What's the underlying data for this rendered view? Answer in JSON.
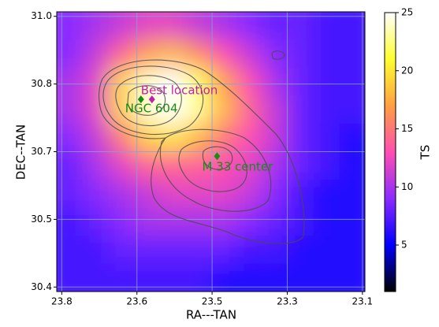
{
  "chart_data": {
    "type": "heatmap",
    "xlabel": "RA---TAN",
    "ylabel": "DEC--TAN",
    "colorbar_label": "TS",
    "xlim": [
      23.76,
      23.145
    ],
    "ylim": [
      30.39,
      31.01
    ],
    "xticks": [
      {
        "value": 23.75,
        "label": "23.8"
      },
      {
        "value": 23.6,
        "label": "23.6"
      },
      {
        "value": 23.45,
        "label": "23.5"
      },
      {
        "value": 23.3,
        "label": "23.3"
      },
      {
        "value": 23.15,
        "label": "23.1"
      }
    ],
    "yticks": [
      {
        "value": 31.0,
        "label": "31.0"
      },
      {
        "value": 30.85,
        "label": "30.8"
      },
      {
        "value": 30.7,
        "label": "30.7"
      },
      {
        "value": 30.55,
        "label": "30.5"
      },
      {
        "value": 30.4,
        "label": "30.4"
      }
    ],
    "grid": true,
    "clim": [
      1,
      25
    ],
    "cticks": [
      5,
      10,
      15,
      20,
      25
    ],
    "colormap": [
      "#000000",
      "#0000ff",
      "#8a2bff",
      "#ff4fb0",
      "#ffa040",
      "#ffff30",
      "#ffffff"
    ],
    "z": [
      [
        9,
        10,
        11,
        12,
        12,
        11,
        10,
        9,
        8,
        8,
        7,
        7
      ],
      [
        9,
        11,
        14,
        17,
        18,
        16,
        13,
        11,
        9,
        8,
        7,
        7
      ],
      [
        10,
        12,
        19,
        24,
        25,
        22,
        17,
        13,
        10,
        8,
        7,
        7
      ],
      [
        10,
        12,
        19,
        24,
        25,
        23,
        18,
        14,
        11,
        8,
        7,
        7
      ],
      [
        9,
        11,
        15,
        19,
        20,
        18,
        15,
        13,
        11,
        8,
        7,
        6
      ],
      [
        8,
        10,
        12,
        14,
        14,
        14,
        13,
        12,
        10,
        8,
        7,
        6
      ],
      [
        8,
        9,
        10,
        11,
        12,
        12,
        12,
        11,
        9,
        7,
        6,
        6
      ],
      [
        7,
        8,
        9,
        10,
        10,
        10,
        10,
        9,
        8,
        7,
        6,
        6
      ],
      [
        7,
        7,
        8,
        8,
        8,
        8,
        8,
        7,
        7,
        6,
        6,
        6
      ],
      [
        7,
        7,
        7,
        7,
        7,
        7,
        6,
        6,
        6,
        6,
        6,
        6
      ]
    ],
    "points": [
      {
        "name": "Best location",
        "x": 23.57,
        "y": 30.816,
        "color": "#c020b0"
      },
      {
        "name": "NGC 604",
        "x": 23.592,
        "y": 30.816,
        "color": "#1a8a1a"
      },
      {
        "name": "M 33 center",
        "x": 23.44,
        "y": 30.69,
        "color": "#1a8a1a"
      }
    ]
  }
}
